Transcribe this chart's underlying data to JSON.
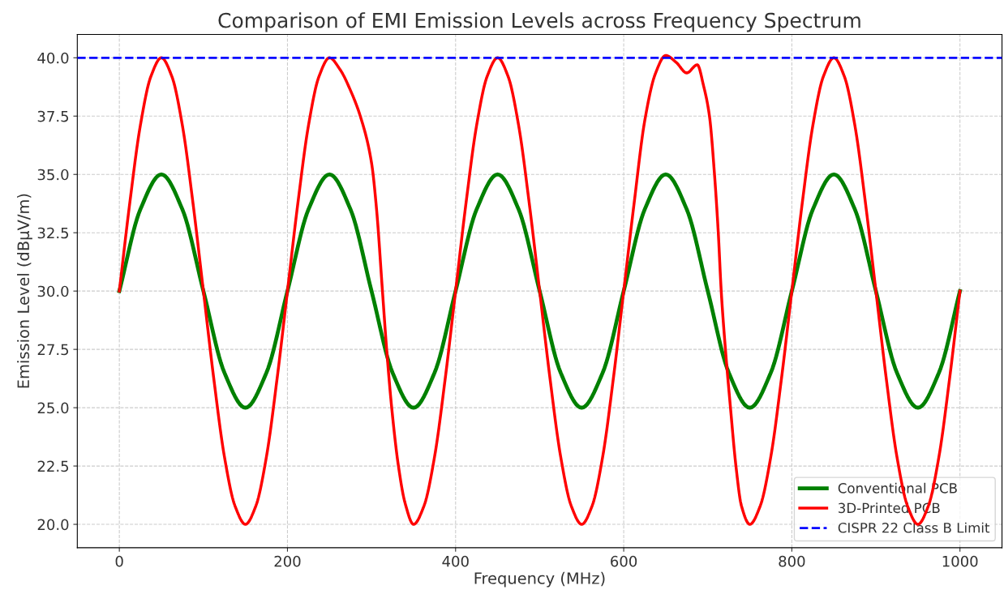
{
  "chart_data": {
    "type": "line",
    "title": "Comparison of EMI Emission Levels across Frequency Spectrum",
    "xlabel": "Frequency (MHz)",
    "ylabel": "Emission Level (dBµV/m)",
    "xlim": [
      -50,
      1050
    ],
    "xticks": [
      0,
      200,
      400,
      600,
      800,
      1000
    ],
    "ylim": [
      19,
      41
    ],
    "yticks": [
      {
        "value": 20,
        "label": "20.0"
      },
      {
        "value": 22.5,
        "label": "22.5"
      },
      {
        "value": 25,
        "label": "25.0"
      },
      {
        "value": 27.5,
        "label": "27.5"
      },
      {
        "value": 30,
        "label": "30.0"
      },
      {
        "value": 32.5,
        "label": "32.5"
      },
      {
        "value": 35,
        "label": "35.0"
      },
      {
        "value": 37.5,
        "label": "37.5"
      },
      {
        "value": 40,
        "label": "40.0"
      }
    ],
    "grid": true,
    "legend": "bottom right",
    "line_style": "solid",
    "marker": "none",
    "series": [
      {
        "name": "Conventional PCB",
        "color": "#008000",
        "x": [
          0,
          25,
          50,
          75,
          100,
          125,
          150,
          175,
          200,
          225,
          250,
          275,
          300,
          325,
          350,
          375,
          400,
          425,
          450,
          475,
          500,
          525,
          550,
          575,
          600,
          625,
          650,
          675,
          700,
          725,
          750,
          775,
          800,
          825,
          850,
          875,
          900,
          925,
          950,
          975,
          1000
        ],
        "values": [
          30,
          33.5,
          35,
          33.5,
          30,
          26.5,
          25,
          26.5,
          30,
          33.5,
          35,
          33.5,
          30,
          26.5,
          25,
          26.5,
          30,
          33.5,
          35,
          33.5,
          30,
          26.5,
          25,
          26.5,
          30,
          33.5,
          35,
          33.5,
          30,
          26.5,
          25,
          26.5,
          30,
          33.5,
          35,
          33.5,
          30,
          26.5,
          25,
          26.5,
          30
        ]
      },
      {
        "name": "3D-Printed PCB",
        "color": "#ff0000",
        "x": [
          0,
          12.5,
          25,
          37.5,
          50,
          62.5,
          75,
          87.5,
          100,
          112.5,
          125,
          137.5,
          150,
          162.5,
          175,
          187.5,
          200,
          212.5,
          225,
          237.5,
          250,
          262.5,
          275,
          287.5,
          300,
          306,
          313,
          318,
          324,
          332,
          340,
          350,
          362.5,
          375,
          387.5,
          400,
          412.5,
          425,
          437.5,
          450,
          462.5,
          475,
          487.5,
          500,
          512.5,
          525,
          537.5,
          550,
          562.5,
          575,
          587.5,
          600,
          612.5,
          625,
          637.5,
          650,
          662.5,
          675,
          687.5,
          695,
          702,
          708,
          712.5,
          716,
          721,
          727,
          733.5,
          740,
          750,
          762.5,
          775,
          787.5,
          800,
          812.5,
          825,
          837.5,
          850,
          862.5,
          875,
          887.5,
          900,
          912.5,
          925,
          937.5,
          950,
          962.5,
          975,
          987.5,
          1000
        ],
        "values": [
          30,
          33.8,
          37.1,
          39.2,
          40,
          39.2,
          37.1,
          33.8,
          30,
          26.2,
          22.9,
          20.8,
          20,
          20.8,
          22.9,
          26.2,
          30,
          33.8,
          37.1,
          39.2,
          40,
          39.5,
          38.6,
          37.4,
          35.5,
          33.5,
          30,
          27.5,
          25,
          22.5,
          20.9,
          20,
          20.8,
          22.9,
          26.2,
          30,
          33.8,
          37.1,
          39.2,
          40,
          39.2,
          37.1,
          33.8,
          30,
          26.2,
          22.9,
          20.8,
          20,
          20.8,
          22.9,
          26.2,
          30,
          33.8,
          37.3,
          39.3,
          40.1,
          39.8,
          39.35,
          39.7,
          38.8,
          37.5,
          35,
          32.5,
          30,
          27.5,
          25,
          22.5,
          20.8,
          20,
          20.8,
          22.9,
          26.2,
          30,
          33.8,
          37.1,
          39.2,
          40,
          39.2,
          37.1,
          33.8,
          30,
          26.2,
          22.9,
          20.8,
          20,
          20.8,
          22.9,
          26.2,
          30
        ]
      }
    ],
    "ref_lines": [
      {
        "axis": "y",
        "value": 40,
        "label": "CISPR 22 Class B Limit",
        "color": "#0000ff",
        "line_style": "dashed"
      }
    ]
  }
}
